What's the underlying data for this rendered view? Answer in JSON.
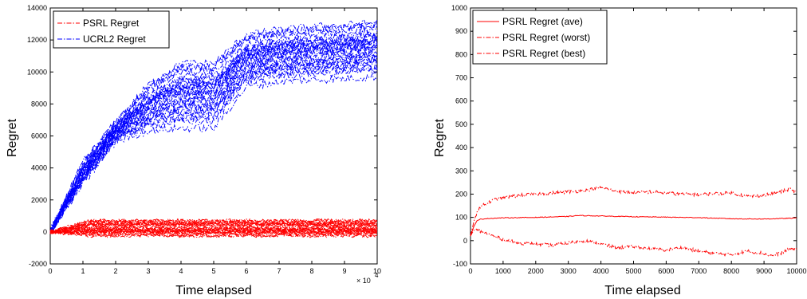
{
  "chart_data": [
    {
      "type": "line",
      "xlabel": "Time elapsed",
      "ylabel": "Regret",
      "x_multiplier_label": "× 10",
      "x_multiplier_exp": "4",
      "xlim": [
        0,
        100000
      ],
      "ylim": [
        -2000,
        14000
      ],
      "x_ticks": [
        0,
        1,
        2,
        3,
        4,
        5,
        6,
        7,
        8,
        9,
        10
      ],
      "y_ticks": [
        -2000,
        0,
        2000,
        4000,
        6000,
        8000,
        10000,
        12000,
        14000
      ],
      "grid": false,
      "legend_position": "top-left",
      "colors": {
        "psrl": "#ff0000",
        "ucrl2": "#0000ff"
      },
      "series": [
        {
          "name": "PSRL Regret",
          "line_style": "dash-dot",
          "description_values": {
            "x": [
              0,
              100000
            ],
            "y_band_low": [
              0,
              -250
            ],
            "y_band_high": [
              0,
              700
            ]
          }
        },
        {
          "name": "UCRL2 Regret",
          "line_style": "dash-dot",
          "x": [
            0,
            10000,
            20000,
            30000,
            40000,
            50000,
            60000,
            70000,
            80000,
            90000,
            100000
          ],
          "y_mean": [
            0,
            3500,
            6200,
            7200,
            8300,
            8700,
            10500,
            10800,
            11000,
            11200,
            11400
          ],
          "y_low": [
            0,
            2800,
            5500,
            6000,
            6000,
            6000,
            8700,
            9000,
            9100,
            9200,
            9300
          ],
          "y_high": [
            0,
            4500,
            7000,
            9500,
            11000,
            11000,
            12700,
            13000,
            13200,
            13300,
            13500
          ]
        }
      ]
    },
    {
      "type": "line",
      "xlabel": "Time elapsed",
      "ylabel": "Regret",
      "xlim": [
        0,
        10000
      ],
      "ylim": [
        -100,
        1000
      ],
      "x_ticks": [
        0,
        1000,
        2000,
        3000,
        4000,
        5000,
        6000,
        7000,
        8000,
        9000,
        10000
      ],
      "y_ticks": [
        -100,
        0,
        100,
        200,
        300,
        400,
        500,
        600,
        700,
        800,
        900,
        1000
      ],
      "grid": false,
      "legend_position": "top-left",
      "colors": {
        "psrl": "#ff0000"
      },
      "series": [
        {
          "name": "PSRL Regret (ave)",
          "line_style": "solid",
          "x": [
            0,
            100,
            200,
            300,
            500,
            1000,
            2000,
            3000,
            3300,
            4000,
            5000,
            6000,
            7000,
            8000,
            9000,
            10000
          ],
          "y": [
            20,
            60,
            85,
            92,
            95,
            98,
            100,
            104,
            108,
            106,
            103,
            101,
            99,
            94,
            93,
            97
          ]
        },
        {
          "name": "PSRL Regret (worst)",
          "line_style": "dash-dot",
          "x": [
            0,
            100,
            200,
            300,
            500,
            800,
            1000,
            1500,
            2000,
            2500,
            3000,
            3500,
            4000,
            4500,
            5000,
            5500,
            6000,
            6500,
            7000,
            7500,
            8000,
            8500,
            9000,
            9500,
            9800,
            10000
          ],
          "y": [
            20,
            80,
            125,
            145,
            160,
            180,
            185,
            195,
            200,
            205,
            210,
            215,
            228,
            212,
            205,
            210,
            205,
            200,
            198,
            202,
            205,
            190,
            195,
            210,
            222,
            205
          ]
        },
        {
          "name": "PSRL Regret (best)",
          "line_style": "dash-dot",
          "x": [
            0,
            100,
            200,
            400,
            600,
            800,
            1000,
            1500,
            2000,
            2500,
            3000,
            3500,
            4000,
            4500,
            5000,
            5500,
            6000,
            6500,
            7000,
            7500,
            8000,
            8500,
            9000,
            9200,
            9500,
            9800,
            10000
          ],
          "y": [
            20,
            45,
            45,
            35,
            25,
            15,
            5,
            -10,
            -15,
            -20,
            -10,
            0,
            -15,
            -30,
            -25,
            -35,
            -40,
            -30,
            -45,
            -55,
            -60,
            -45,
            -55,
            -65,
            -55,
            -35,
            -35
          ]
        }
      ]
    }
  ]
}
